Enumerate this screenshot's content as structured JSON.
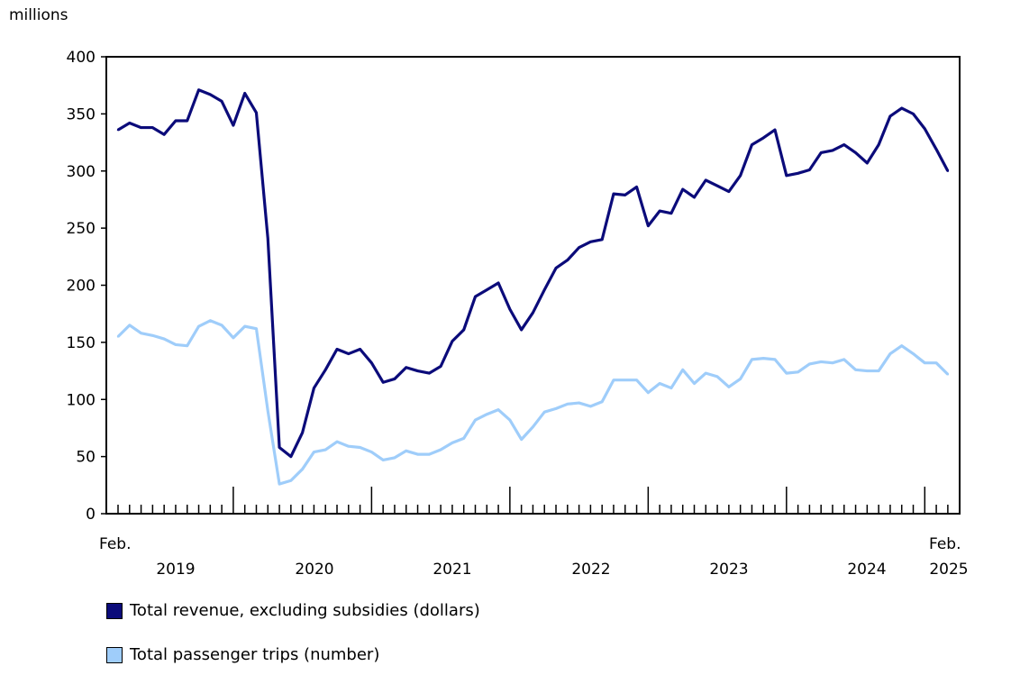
{
  "chart_data": {
    "type": "line",
    "ylabel": "millions",
    "ylim": [
      0,
      400
    ],
    "yticks": [
      0,
      50,
      100,
      150,
      200,
      250,
      300,
      350,
      400
    ],
    "x_start": "2019-02",
    "x_end": "2025-02",
    "x_start_label": "Feb.",
    "x_end_label": "Feb.",
    "year_labels": [
      "2019",
      "2020",
      "2021",
      "2022",
      "2023",
      "2024",
      "2025"
    ],
    "grid": false,
    "legend": "bottom",
    "series": [
      {
        "name": "Total revenue, excluding subsidies (dollars)",
        "color": "#0b0b7a",
        "values": [
          336,
          342,
          338,
          338,
          332,
          344,
          344,
          371,
          367,
          361,
          340,
          368,
          351,
          241,
          58,
          50,
          71,
          110,
          126,
          144,
          140,
          144,
          132,
          115,
          118,
          128,
          125,
          123,
          129,
          151,
          161,
          190,
          196,
          202,
          179,
          161,
          176,
          196,
          215,
          222,
          233,
          238,
          240,
          280,
          279,
          286,
          252,
          265,
          263,
          284,
          277,
          292,
          287,
          282,
          296,
          323,
          329,
          336,
          296,
          298,
          301,
          316,
          318,
          323,
          316,
          307,
          323,
          348,
          355,
          350,
          337,
          319,
          300
        ]
      },
      {
        "name": "Total passenger trips (number)",
        "color": "#9fcdfa",
        "values": [
          155,
          165,
          158,
          156,
          153,
          148,
          147,
          164,
          169,
          165,
          154,
          164,
          162,
          90,
          26,
          29,
          39,
          54,
          56,
          63,
          59,
          58,
          54,
          47,
          49,
          55,
          52,
          52,
          56,
          62,
          66,
          82,
          87,
          91,
          82,
          65,
          76,
          89,
          92,
          96,
          97,
          94,
          98,
          117,
          117,
          117,
          106,
          114,
          110,
          126,
          114,
          123,
          120,
          111,
          118,
          135,
          136,
          135,
          123,
          124,
          131,
          133,
          132,
          135,
          126,
          125,
          125,
          140,
          147,
          140,
          132,
          132,
          122
        ]
      }
    ]
  }
}
